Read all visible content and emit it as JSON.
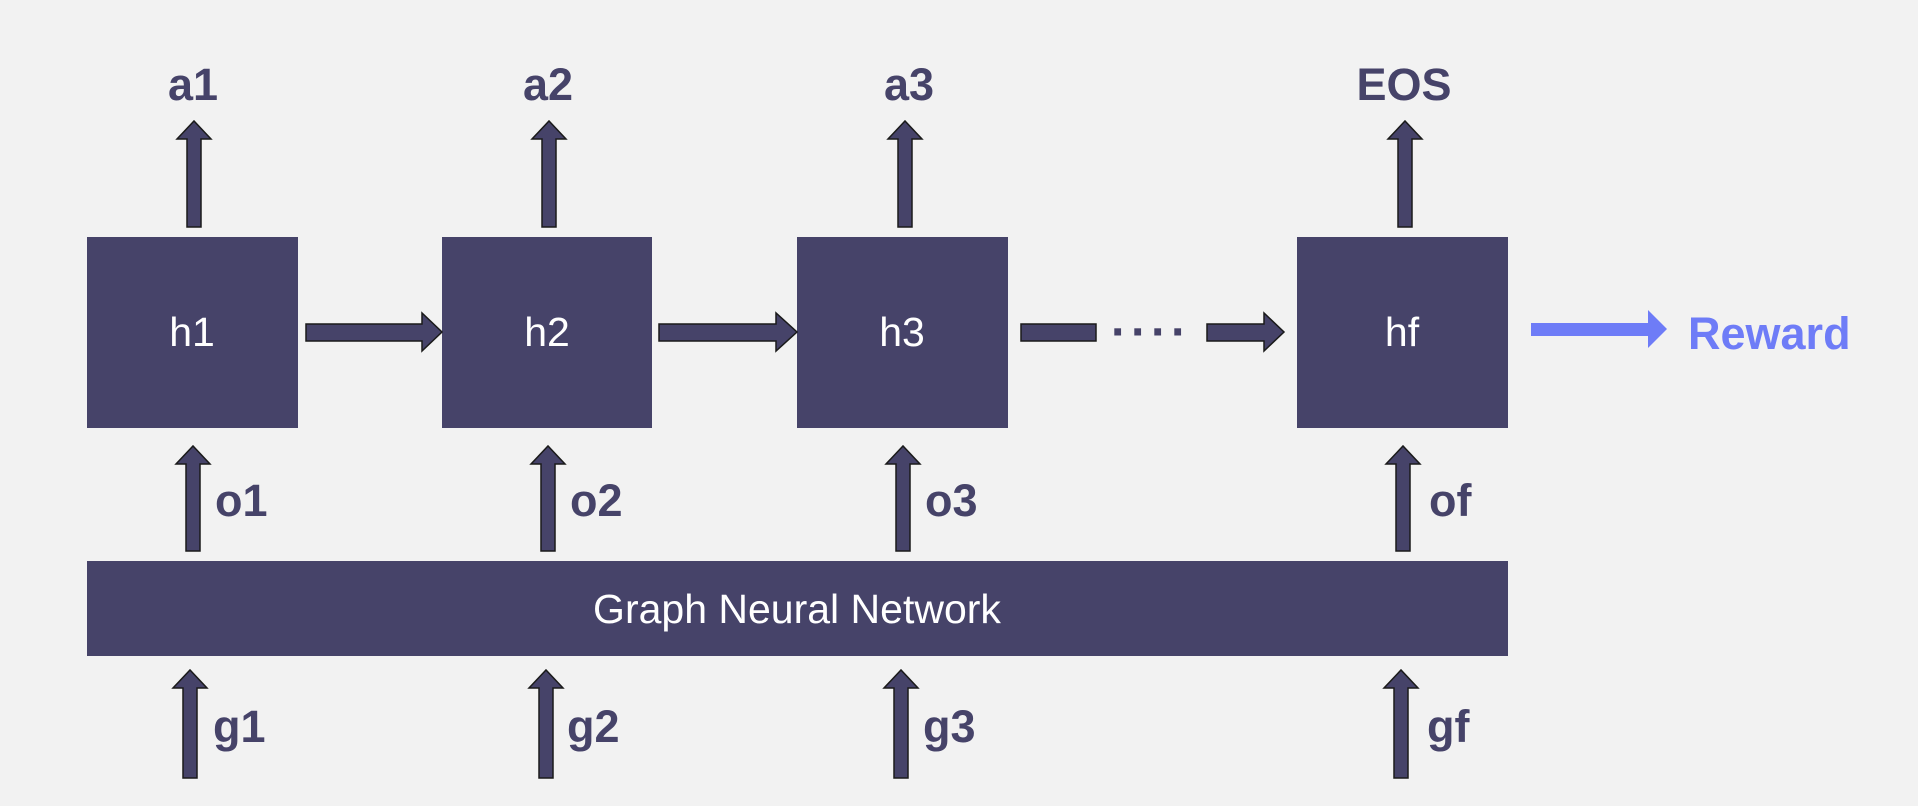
{
  "colors": {
    "background": "#f2f2f2",
    "box_fill": "#464369",
    "arrow_fill": "#464369",
    "arrow_stroke": "#1a1a1a",
    "label": "#464369",
    "reward": "#6e7cf7"
  },
  "hidden_states": [
    "h1",
    "h2",
    "h3",
    "hf"
  ],
  "actions": [
    "a1",
    "a2",
    "a3",
    "EOS"
  ],
  "observations": [
    "o1",
    "o2",
    "o3",
    "of"
  ],
  "graphs": [
    "g1",
    "g2",
    "g3",
    "gf"
  ],
  "gnn": {
    "label": "Graph Neural Network"
  },
  "reward": {
    "label": "Reward"
  },
  "ellipsis": "····"
}
